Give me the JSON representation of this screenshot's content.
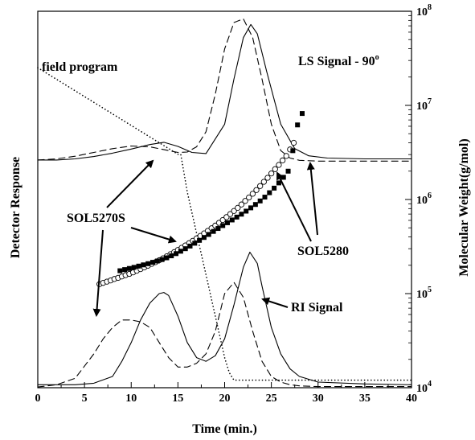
{
  "chart_data": {
    "type": "line",
    "xlabel": "Time (min.)",
    "ylabel_left": "Detector Response",
    "ylabel_right": "Molecular Weight(g/mol)",
    "xlim": [
      0,
      40
    ],
    "x_ticks": [
      "0",
      "5",
      "10",
      "15",
      "20",
      "25",
      "30",
      "35",
      "40"
    ],
    "y2_scale": "log",
    "y2lim": [
      10000,
      100000000
    ],
    "y2_ticks": [
      {
        "base": "10",
        "exp": "4",
        "value": 10000
      },
      {
        "base": "10",
        "exp": "5",
        "value": 100000
      },
      {
        "base": "10",
        "exp": "6",
        "value": 1000000
      },
      {
        "base": "10",
        "exp": "7",
        "value": 10000000
      },
      {
        "base": "10",
        "exp": "8",
        "value": 100000000
      }
    ],
    "grid": false,
    "detector_range": [
      0,
      100
    ],
    "annotations": {
      "field_program": "field program",
      "ls_signal": "LS Signal - 90",
      "ls_degree": "o",
      "sol5270s": "SOL5270S",
      "sol5280": "SOL5280",
      "ri_signal": "RI Signal"
    },
    "series": [
      {
        "style": "solid",
        "axis": "left",
        "x": [
          0,
          2,
          4,
          6,
          8,
          10,
          12,
          13.5,
          15,
          16.5,
          18,
          20,
          21,
          22,
          22.8,
          23.5,
          24.5,
          26,
          27.5,
          29,
          31,
          35,
          40
        ],
        "y": [
          60.5,
          60.5,
          60.8,
          61.4,
          62.3,
          63.4,
          64.6,
          65.2,
          64.1,
          62.5,
          62.2,
          70,
          82,
          93,
          96.5,
          94,
          84,
          70,
          63.5,
          61.6,
          61,
          60.8,
          60.8
        ]
      },
      {
        "style": "dashed",
        "axis": "left",
        "x": [
          0,
          2,
          4,
          6,
          8,
          10,
          12,
          14,
          15,
          16,
          17,
          18,
          19,
          20,
          21,
          22,
          23,
          24,
          25,
          26,
          27,
          28,
          30,
          35,
          40
        ],
        "y": [
          60.5,
          60.8,
          61.5,
          62.5,
          63.5,
          64.2,
          64,
          63,
          62.5,
          62.6,
          64,
          68,
          78,
          90,
          97,
          98,
          93,
          82,
          70,
          63,
          61,
          60.4,
          60.2,
          60.2,
          60.2
        ]
      },
      {
        "style": "solid",
        "axis": "left",
        "x": [
          0,
          4,
          6,
          8,
          9,
          10,
          11,
          12,
          13,
          13.5,
          14,
          15,
          16,
          17,
          18,
          19,
          20,
          21,
          22,
          22.7,
          23.5,
          24,
          25,
          26,
          27,
          28,
          30,
          35,
          40
        ],
        "y": [
          0.8,
          0.8,
          1.2,
          3,
          7,
          12,
          18,
          22.5,
          25,
          25.3,
          24.5,
          19,
          12,
          8,
          7,
          8.5,
          13,
          22,
          32,
          36,
          33,
          27,
          16,
          9,
          5,
          3,
          1.5,
          1,
          0.8
        ]
      },
      {
        "style": "dashed",
        "axis": "left",
        "x": [
          0,
          2,
          4,
          6,
          7,
          8,
          9,
          10,
          11,
          12,
          13,
          14,
          15,
          16,
          17,
          18,
          19,
          20,
          21,
          22,
          23,
          24,
          25,
          26,
          27,
          28,
          30,
          35,
          40
        ],
        "y": [
          0.2,
          0.8,
          2.5,
          9,
          13,
          16,
          18,
          18,
          17.5,
          16,
          12,
          8,
          5.5,
          5.5,
          6.5,
          9,
          15,
          25,
          28,
          24,
          15,
          7,
          3,
          1.5,
          0.8,
          0.5,
          0.3,
          0.3,
          0.3
        ]
      },
      {
        "style": "dotted",
        "axis": "left",
        "x": [
          0,
          15,
          15.3,
          16,
          17,
          18,
          19,
          20,
          20.5,
          21,
          40
        ],
        "y": [
          85,
          62,
          62,
          52,
          41,
          30,
          19,
          8,
          4,
          2,
          2
        ]
      },
      {
        "style": "open-circles",
        "axis": "right",
        "x": [
          6.6,
          7,
          7.4,
          7.8,
          8.2,
          8.6,
          9,
          9.4,
          9.8,
          10.2,
          10.6,
          11,
          11.4,
          11.8,
          12.2,
          12.6,
          13,
          13.4,
          13.8,
          14.2,
          14.6,
          15,
          15.4,
          15.8,
          16.2,
          16.6,
          17,
          17.4,
          17.8,
          18.2,
          18.6,
          19,
          19.4,
          19.8,
          20.2,
          20.6,
          21,
          21.4,
          21.8,
          22.2,
          22.6,
          23,
          23.4,
          23.8,
          24.2,
          24.6,
          25,
          25.4,
          25.8,
          26.2,
          26.6,
          27,
          27.4
        ],
        "y": [
          126000,
          130000,
          134000,
          138000,
          143000,
          147000,
          152000,
          157000,
          162000,
          168000,
          175000,
          182000,
          190000,
          198000,
          207000,
          216000,
          226000,
          237000,
          249000,
          262000,
          276000,
          291000,
          307000,
          325000,
          344000,
          364000,
          386000,
          410000,
          436000,
          464000,
          495000,
          528000,
          565000,
          605000,
          650000,
          700000,
          755000,
          815000,
          885000,
          965000,
          1050000,
          1150000,
          1260000,
          1390000,
          1540000,
          1700000,
          1890000,
          2100000,
          2330000,
          2600000,
          2900000,
          3400000,
          4000000
        ]
      },
      {
        "style": "filled-squares",
        "axis": "right",
        "x": [
          8.8,
          9.3,
          9.8,
          10.3,
          10.8,
          11.3,
          11.8,
          12.3,
          12.8,
          13.3,
          13.8,
          14.3,
          14.8,
          15.3,
          15.8,
          16.3,
          16.8,
          17.3,
          17.8,
          18.3,
          18.8,
          19.3,
          19.8,
          20.3,
          20.8,
          21.3,
          21.8,
          22.3,
          22.8,
          23.3,
          23.8,
          24.3,
          24.8,
          25.3,
          25.8,
          26.3,
          26.8,
          27.3,
          27.8,
          28.3
        ],
        "y": [
          175000,
          180000,
          185000,
          190000,
          196000,
          202000,
          208000,
          215000,
          222000,
          230000,
          240000,
          252000,
          266000,
          282000,
          300000,
          320000,
          343000,
          368000,
          395000,
          425000,
          458000,
          492000,
          528000,
          566000,
          606000,
          650000,
          698000,
          752000,
          815000,
          885000,
          965000,
          1060000,
          1180000,
          1320000,
          1500000,
          1720000,
          2000000,
          3300000,
          6200000,
          8200000
        ]
      }
    ]
  }
}
